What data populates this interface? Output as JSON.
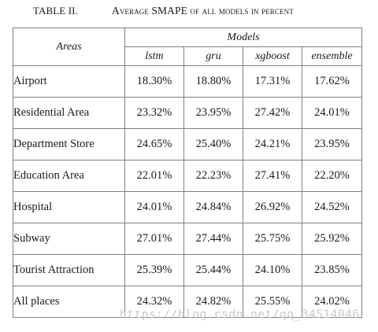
{
  "caption": {
    "label": "TABLE II.",
    "title": "Average SMAPE of all models in percent"
  },
  "header": {
    "areas": "Areas",
    "models": "Models",
    "model_names": [
      "lstm",
      "gru",
      "xgboost",
      "ensemble"
    ]
  },
  "rows": [
    {
      "area": "Airport",
      "values": [
        "18.30%",
        "18.80%",
        "17.31%",
        "17.62%"
      ]
    },
    {
      "area": "Residential Area",
      "values": [
        "23.32%",
        "23.95%",
        "27.42%",
        "24.01%"
      ]
    },
    {
      "area": "Department Store",
      "values": [
        "24.65%",
        "25.40%",
        "24.21%",
        "23.95%"
      ]
    },
    {
      "area": "Education Area",
      "values": [
        "22.01%",
        "22.23%",
        "27.41%",
        "22.20%"
      ]
    },
    {
      "area": "Hospital",
      "values": [
        "24.01%",
        "24.84%",
        "26.92%",
        "24.52%"
      ]
    },
    {
      "area": "Subway",
      "values": [
        "27.01%",
        "27.44%",
        "25.75%",
        "25.92%"
      ]
    },
    {
      "area": "Tourist Attraction",
      "values": [
        "25.39%",
        "25.44%",
        "24.10%",
        "23.85%"
      ]
    },
    {
      "area": "All places",
      "values": [
        "24.32%",
        "24.82%",
        "25.55%",
        "24.02%"
      ]
    }
  ],
  "watermark": "https://blog.csdn.net/qq_34514046"
}
